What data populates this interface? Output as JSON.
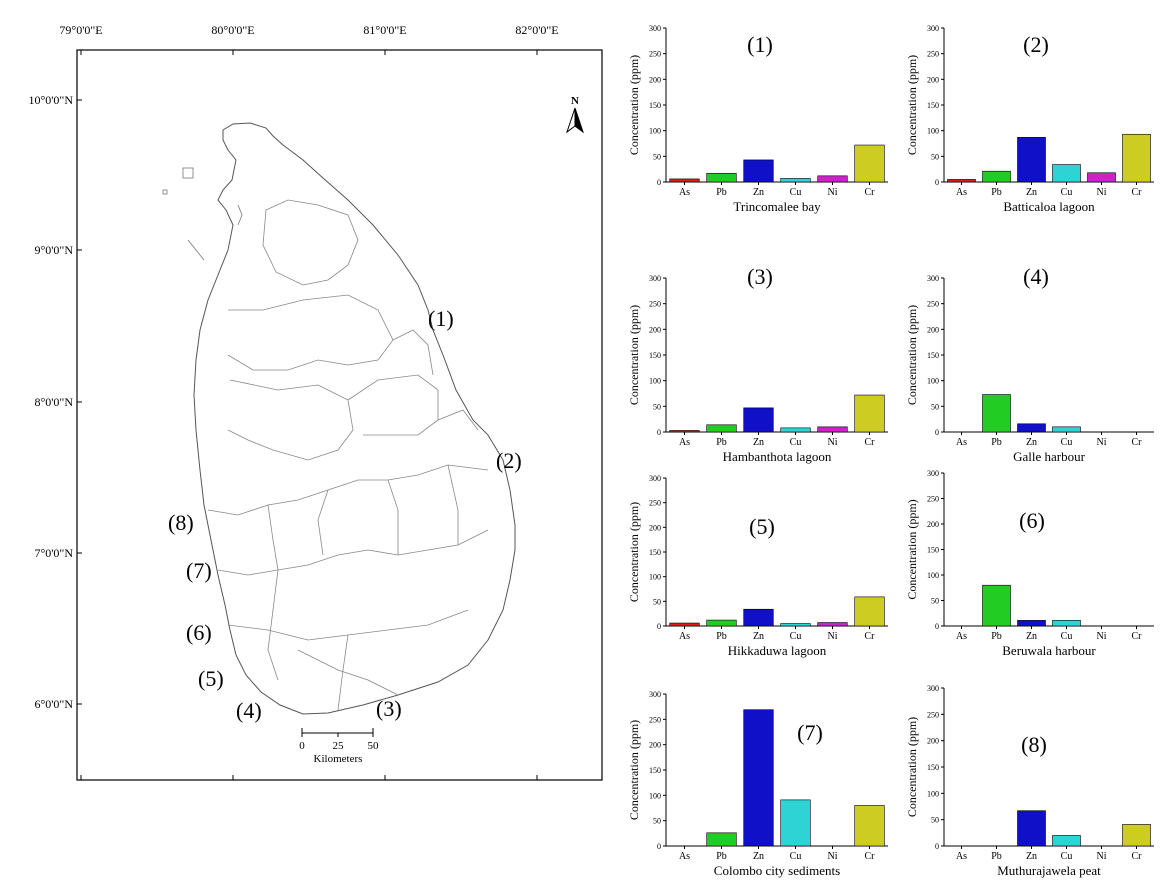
{
  "map": {
    "lon_labels": [
      "79°0'0\"E",
      "80°0'0\"E",
      "81°0'0\"E",
      "82°0'0\"E"
    ],
    "lat_labels": [
      "10°0'0\"N",
      "9°0'0\"N",
      "8°0'0\"N",
      "7°0'0\"N",
      "6°0'0\"N"
    ],
    "north_label": "N",
    "scale_ticks": [
      "0",
      "25",
      "50"
    ],
    "scale_unit": "Kilometers",
    "site_labels": [
      "(1)",
      "(2)",
      "(3)",
      "(4)",
      "(5)",
      "(6)",
      "(7)",
      "(8)"
    ]
  },
  "colors": {
    "As": "#e31a1c",
    "Pb": "#22cc22",
    "Zn": "#1010c8",
    "Cu": "#2ed4d4",
    "Ni": "#cc22cc",
    "Cr": "#cccc22"
  },
  "chart_data": [
    {
      "type": "bar",
      "panel": "(1)",
      "xlabel": "Trincomalee bay",
      "ylabel": "Concentration (ppm)",
      "ylim": [
        0,
        300
      ],
      "yticks": [
        0,
        50,
        100,
        150,
        200,
        250,
        300
      ],
      "categories": [
        "As",
        "Pb",
        "Zn",
        "Cu",
        "Ni",
        "Cr"
      ],
      "values": [
        6,
        17,
        43,
        7,
        12,
        72
      ]
    },
    {
      "type": "bar",
      "panel": "(2)",
      "xlabel": "Batticaloa lagoon",
      "ylabel": "Concentration (ppm)",
      "ylim": [
        0,
        300
      ],
      "yticks": [
        0,
        50,
        100,
        150,
        200,
        250,
        300
      ],
      "categories": [
        "As",
        "Pb",
        "Zn",
        "Cu",
        "Ni",
        "Cr"
      ],
      "values": [
        5,
        21,
        87,
        34,
        18,
        93
      ]
    },
    {
      "type": "bar",
      "panel": "(3)",
      "xlabel": "Hambanthota lagoon",
      "ylabel": "Concentration (ppm)",
      "ylim": [
        0,
        300
      ],
      "yticks": [
        0,
        50,
        100,
        150,
        200,
        250,
        300
      ],
      "categories": [
        "As",
        "Pb",
        "Zn",
        "Cu",
        "Ni",
        "Cr"
      ],
      "values": [
        3,
        14,
        47,
        8,
        10,
        72
      ]
    },
    {
      "type": "bar",
      "panel": "(4)",
      "xlabel": "Galle harbour",
      "ylabel": "Concentration (ppm)",
      "ylim": [
        0,
        300
      ],
      "yticks": [
        0,
        50,
        100,
        150,
        200,
        250,
        300
      ],
      "categories": [
        "As",
        "Pb",
        "Zn",
        "Cu",
        "Ni",
        "Cr"
      ],
      "values": [
        0,
        73,
        16,
        10,
        0,
        0
      ]
    },
    {
      "type": "bar",
      "panel": "(5)",
      "xlabel": "Hikkaduwa lagoon",
      "ylabel": "Concentration (ppm)",
      "ylim": [
        0,
        300
      ],
      "yticks": [
        0,
        50,
        100,
        150,
        200,
        250,
        300
      ],
      "categories": [
        "As",
        "Pb",
        "Zn",
        "Cu",
        "Ni",
        "Cr"
      ],
      "values": [
        6,
        12,
        34,
        5,
        7,
        59
      ]
    },
    {
      "type": "bar",
      "panel": "(6)",
      "xlabel": "Beruwala harbour",
      "ylabel": "Concentration (ppm)",
      "ylim": [
        0,
        300
      ],
      "yticks": [
        0,
        50,
        100,
        150,
        200,
        250,
        300
      ],
      "categories": [
        "As",
        "Pb",
        "Zn",
        "Cu",
        "Ni",
        "Cr"
      ],
      "values": [
        0,
        80,
        11,
        11,
        0,
        0
      ]
    },
    {
      "type": "bar",
      "panel": "(7)",
      "xlabel": "Colombo city sediments",
      "ylabel": "Concentration (ppm)",
      "ylim": [
        0,
        300
      ],
      "yticks": [
        0,
        50,
        100,
        150,
        200,
        250,
        300
      ],
      "categories": [
        "As",
        "Pb",
        "Zn",
        "Cu",
        "Ni",
        "Cr"
      ],
      "values": [
        0,
        26,
        269,
        91,
        0,
        80
      ]
    },
    {
      "type": "bar",
      "panel": "(8)",
      "xlabel": "Muthurajawela peat",
      "ylabel": "Concentration (ppm)",
      "ylim": [
        0,
        300
      ],
      "yticks": [
        0,
        50,
        100,
        150,
        200,
        250,
        300
      ],
      "categories": [
        "As",
        "Pb",
        "Zn",
        "Cu",
        "Ni",
        "Cr"
      ],
      "values": [
        0,
        0,
        67,
        20,
        0,
        41
      ]
    }
  ]
}
